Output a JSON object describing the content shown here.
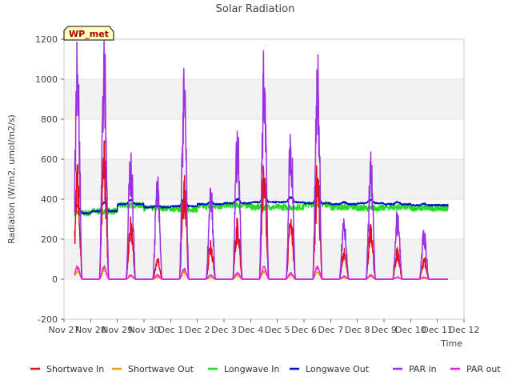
{
  "chart_data": {
    "type": "line",
    "title": "Solar Radiation",
    "xlabel": "Time",
    "ylabel": "Radiation (W/m2, umol/m2/s)",
    "ylim": [
      -200,
      1200
    ],
    "yticks": [
      -200,
      0,
      200,
      400,
      600,
      800,
      1000,
      1200
    ],
    "xlim": [
      0,
      15
    ],
    "xtick_labels": [
      "Nov 27",
      "Nov 28",
      "Nov 29",
      "Nov 30",
      "Dec 1",
      "Dec 2",
      "Dec 3",
      "Dec 4",
      "Dec 5",
      "Dec 6",
      "Dec 7",
      "Dec 8",
      "Dec 9",
      "Dec 10",
      "Dec 11",
      "Dec 12"
    ],
    "data_start_day": 0.4,
    "data_end_day": 14.4,
    "site_badge": "WP_met",
    "band_fill": "#f2f2f2",
    "x_unit": "days since Nov 27",
    "daily_peaks": {
      "sw_in": [
        470,
        550,
        260,
        90,
        430,
        160,
        250,
        490,
        300,
        480,
        120,
        220,
        130,
        90
      ],
      "par_in": [
        1000,
        1070,
        560,
        430,
        870,
        390,
        660,
        960,
        630,
        950,
        270,
        510,
        290,
        210
      ],
      "par_out": [
        60,
        60,
        20,
        20,
        50,
        20,
        30,
        60,
        30,
        60,
        15,
        20,
        10,
        10
      ],
      "sw_out": [
        40,
        45,
        15,
        10,
        35,
        10,
        20,
        40,
        20,
        35,
        8,
        15,
        8,
        5
      ]
    },
    "longwave_in_base": [
      330,
      340,
      370,
      355,
      350,
      365,
      370,
      360,
      360,
      375,
      360,
      355,
      360,
      355
    ],
    "longwave_out_base": [
      330,
      340,
      375,
      360,
      365,
      375,
      380,
      385,
      385,
      380,
      375,
      380,
      375,
      370
    ],
    "series": [
      {
        "name": "Shortwave In",
        "color": "#e01020"
      },
      {
        "name": "Shortwave Out",
        "color": "#f0a000"
      },
      {
        "name": "Longwave In",
        "color": "#22dd22"
      },
      {
        "name": "Longwave Out",
        "color": "#0010c0"
      },
      {
        "name": "PAR in",
        "color": "#9a30e0"
      },
      {
        "name": "PAR out",
        "color": "#f020e0"
      }
    ]
  }
}
